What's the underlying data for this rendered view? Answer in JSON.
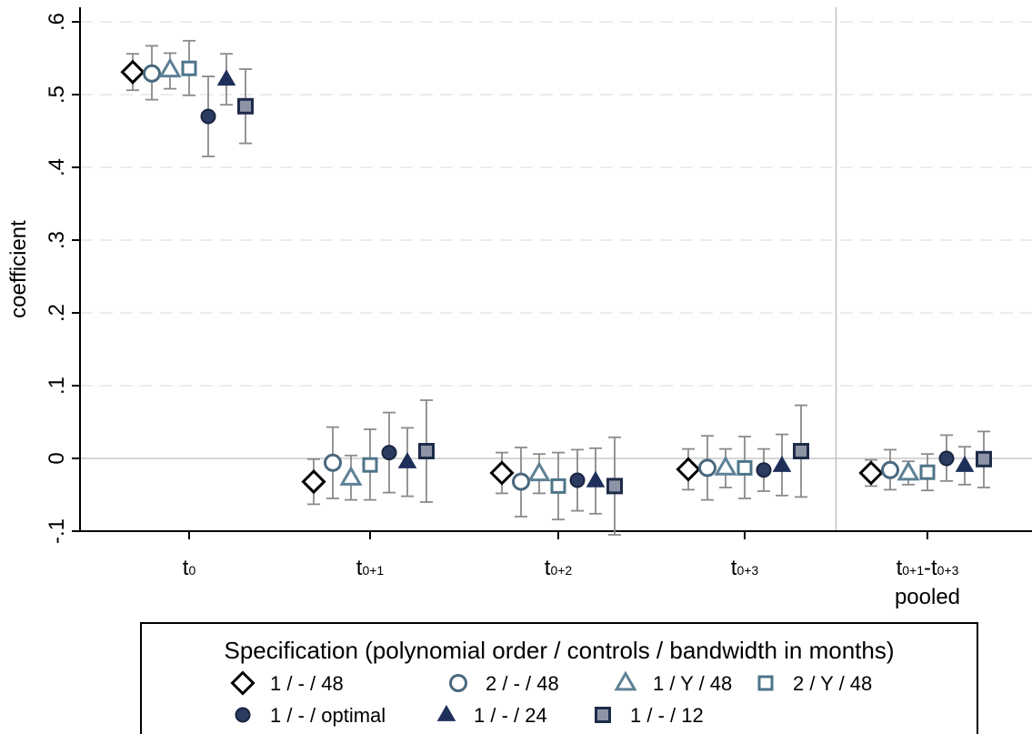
{
  "chart_data": {
    "type": "scatter",
    "ylabel": "coefficient",
    "ylim": [
      -0.1,
      0.6
    ],
    "yticks": [
      {
        "value": -0.1,
        "label": "-.1"
      },
      {
        "value": 0,
        "label": "0"
      },
      {
        "value": 0.1,
        "label": ".1"
      },
      {
        "value": 0.2,
        "label": ".2"
      },
      {
        "value": 0.3,
        "label": ".3"
      },
      {
        "value": 0.4,
        "label": ".4"
      },
      {
        "value": 0.5,
        "label": ".5"
      },
      {
        "value": 0.6,
        "label": ".6"
      }
    ],
    "grid": "horizontal dashed",
    "reference_line_y": 0,
    "categories": [
      {
        "base": "t",
        "sub": "0",
        "second_line": ""
      },
      {
        "base": "t",
        "sub": "0+1",
        "second_line": ""
      },
      {
        "base": "t",
        "sub": "0+2",
        "second_line": ""
      },
      {
        "base": "t",
        "sub": "0+3",
        "second_line": ""
      },
      {
        "base": "t",
        "sub": "0+1",
        "base2": "-t",
        "sub2": "0+3",
        "second_line": "pooled"
      }
    ],
    "vertical_separator_after_category": 3,
    "legend": {
      "placement": "bottom",
      "title": "Specification (polynomial order / controls / bandwidth in months)"
    },
    "series": [
      {
        "name": "1 / - / 48",
        "marker": "diamond-hollow",
        "color": "#000000",
        "values": [
          0.531,
          -0.032,
          -0.02,
          -0.015,
          -0.02
        ],
        "ci_low": [
          0.506,
          -0.063,
          -0.048,
          -0.043,
          -0.038
        ],
        "ci_high": [
          0.556,
          -0.001,
          0.008,
          0.013,
          -0.002
        ]
      },
      {
        "name": "2 / - / 48",
        "marker": "circle-hollow",
        "color": "#49687e",
        "values": [
          0.529,
          -0.006,
          -0.032,
          -0.013,
          -0.016
        ],
        "ci_low": [
          0.493,
          -0.055,
          -0.08,
          -0.057,
          -0.043
        ],
        "ci_high": [
          0.567,
          0.043,
          0.015,
          0.031,
          0.012
        ]
      },
      {
        "name": "1 / Y / 48",
        "marker": "triangle-hollow",
        "color": "#5e8196",
        "values": [
          0.534,
          -0.027,
          -0.021,
          -0.013,
          -0.02
        ],
        "ci_low": [
          0.508,
          -0.057,
          -0.048,
          -0.04,
          -0.036
        ],
        "ci_high": [
          0.557,
          0.004,
          0.006,
          0.013,
          -0.004
        ]
      },
      {
        "name": "2 / Y / 48",
        "marker": "square-hollow",
        "color": "#4d7589",
        "values": [
          0.536,
          -0.009,
          -0.038,
          -0.013,
          -0.019
        ],
        "ci_low": [
          0.499,
          -0.057,
          -0.084,
          -0.055,
          -0.044
        ],
        "ci_high": [
          0.574,
          0.04,
          0.008,
          0.03,
          0.006
        ]
      },
      {
        "name": "1 / - / optimal",
        "marker": "circle-filled",
        "color": "#2b3b62",
        "values": [
          0.47,
          0.008,
          -0.03,
          -0.016,
          0.0
        ],
        "ci_low": [
          0.415,
          -0.047,
          -0.072,
          -0.045,
          -0.031
        ],
        "ci_high": [
          0.525,
          0.063,
          0.012,
          0.013,
          0.032
        ]
      },
      {
        "name": "1 / - / 24",
        "marker": "triangle-filled",
        "color": "#1e2f5a",
        "values": [
          0.521,
          -0.005,
          -0.031,
          -0.01,
          -0.01
        ],
        "ci_low": [
          0.486,
          -0.052,
          -0.076,
          -0.051,
          -0.036
        ],
        "ci_high": [
          0.556,
          0.042,
          0.014,
          0.033,
          0.016
        ]
      },
      {
        "name": "1 / - / 12",
        "marker": "square-filled",
        "color": "#2a3a5f",
        "values": [
          0.484,
          0.01,
          -0.038,
          0.01,
          -0.001
        ],
        "ci_low": [
          0.433,
          -0.06,
          -0.105,
          -0.053,
          -0.04
        ],
        "ci_high": [
          0.535,
          0.08,
          0.029,
          0.073,
          0.037
        ]
      }
    ]
  }
}
